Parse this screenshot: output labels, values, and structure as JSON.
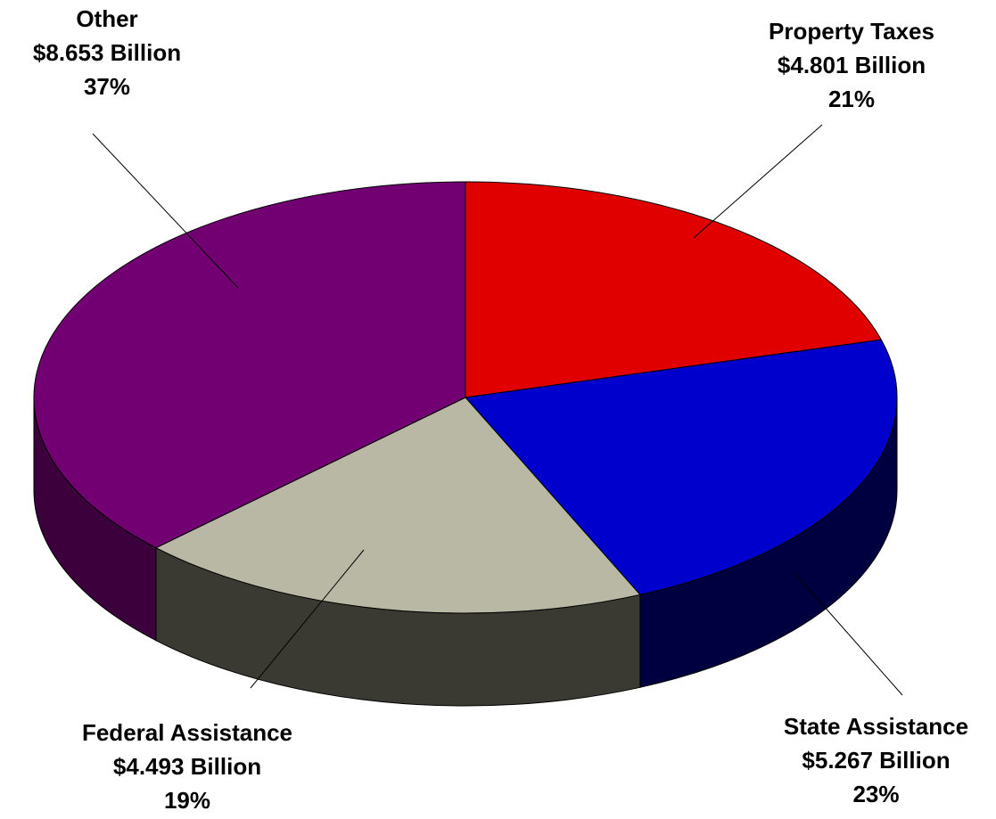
{
  "chart_data": {
    "type": "pie",
    "title": "",
    "unit": "Billion",
    "slices": [
      {
        "name": "Property Taxes",
        "value": 4.801,
        "amount_label": "$4.801 Billion",
        "percent": 21,
        "percent_label": "21%",
        "color": "#e00000",
        "side_color": "#8a0000"
      },
      {
        "name": "State Assistance",
        "value": 5.267,
        "amount_label": "$5.267 Billion",
        "percent": 23,
        "percent_label": "23%",
        "color": "#0000cc",
        "side_color": "#000040"
      },
      {
        "name": "Federal Assistance",
        "value": 4.493,
        "amount_label": "$4.493 Billion",
        "percent": 19,
        "percent_label": "19%",
        "color": "#b8b8a4",
        "side_color": "#3a3a32"
      },
      {
        "name": "Other",
        "value": 8.653,
        "amount_label": "$8.653 Billion",
        "percent": 37,
        "percent_label": "37%",
        "color": "#730073",
        "side_color": "#3c003c"
      }
    ],
    "legend": "none"
  }
}
